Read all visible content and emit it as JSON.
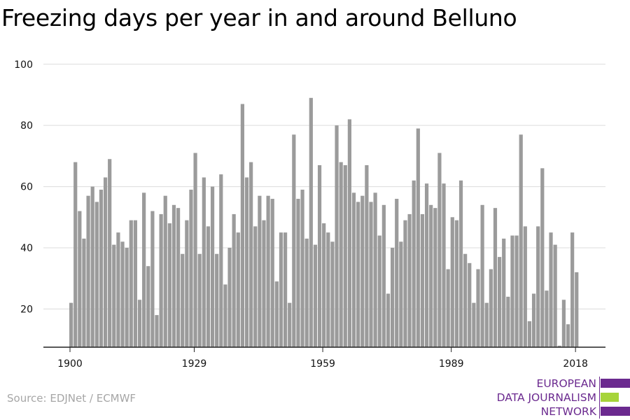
{
  "chart_data": {
    "type": "bar",
    "title": "Freezing days per year in and around Belluno",
    "xlabel": "",
    "ylabel": "",
    "ylim": [
      7.5,
      102
    ],
    "yticks": [
      20,
      40,
      60,
      80,
      100
    ],
    "xticks": [
      1900,
      1929,
      1959,
      1989,
      2018
    ],
    "x": [
      1900,
      1901,
      1902,
      1903,
      1904,
      1905,
      1906,
      1907,
      1908,
      1909,
      1910,
      1911,
      1912,
      1913,
      1914,
      1915,
      1916,
      1917,
      1918,
      1919,
      1920,
      1921,
      1922,
      1923,
      1924,
      1925,
      1926,
      1927,
      1928,
      1929,
      1930,
      1931,
      1932,
      1933,
      1934,
      1935,
      1936,
      1937,
      1938,
      1939,
      1940,
      1941,
      1942,
      1943,
      1944,
      1945,
      1946,
      1947,
      1948,
      1949,
      1950,
      1951,
      1952,
      1953,
      1954,
      1955,
      1956,
      1957,
      1958,
      1959,
      1960,
      1961,
      1962,
      1963,
      1964,
      1965,
      1966,
      1967,
      1968,
      1969,
      1970,
      1971,
      1972,
      1973,
      1974,
      1975,
      1976,
      1977,
      1978,
      1979,
      1980,
      1981,
      1982,
      1983,
      1984,
      1985,
      1986,
      1987,
      1988,
      1989,
      1990,
      1991,
      1992,
      1993,
      1994,
      1995,
      1996,
      1997,
      1998,
      1999,
      2000,
      2001,
      2002,
      2003,
      2004,
      2005,
      2006,
      2007,
      2008,
      2009,
      2010,
      2011,
      2012,
      2013,
      2014,
      2015,
      2016,
      2017,
      2018
    ],
    "values": [
      22,
      68,
      52,
      43,
      57,
      60,
      55,
      59,
      63,
      69,
      41,
      45,
      42,
      40,
      49,
      49,
      23,
      58,
      34,
      52,
      18,
      51,
      57,
      48,
      54,
      53,
      38,
      49,
      59,
      71,
      38,
      63,
      47,
      60,
      38,
      64,
      28,
      40,
      51,
      45,
      87,
      63,
      68,
      47,
      57,
      49,
      57,
      56,
      29,
      45,
      45,
      22,
      77,
      56,
      59,
      43,
      89,
      41,
      67,
      48,
      45,
      42,
      80,
      68,
      67,
      82,
      58,
      55,
      57,
      67,
      55,
      58,
      44,
      54,
      25,
      40,
      56,
      42,
      49,
      51,
      62,
      79,
      51,
      61,
      54,
      53,
      71,
      61,
      33,
      50,
      49,
      62,
      38,
      35,
      22,
      33,
      54,
      22,
      33,
      53,
      37,
      43,
      24,
      44,
      44,
      77,
      47,
      16,
      25,
      47,
      66,
      26,
      45,
      41,
      8,
      23,
      15,
      45,
      32
    ],
    "grid": "horizontal",
    "bar_color": "#9b9b9b",
    "legend": "none"
  },
  "source": "Source: EDJNet / ECMWF",
  "logo": {
    "line1": "EUROPEAN",
    "line2": "DATA JOURNALISM",
    "line3": "NETWORK",
    "color_purple": "#6b2a8f",
    "color_green": "#a6d43a"
  }
}
